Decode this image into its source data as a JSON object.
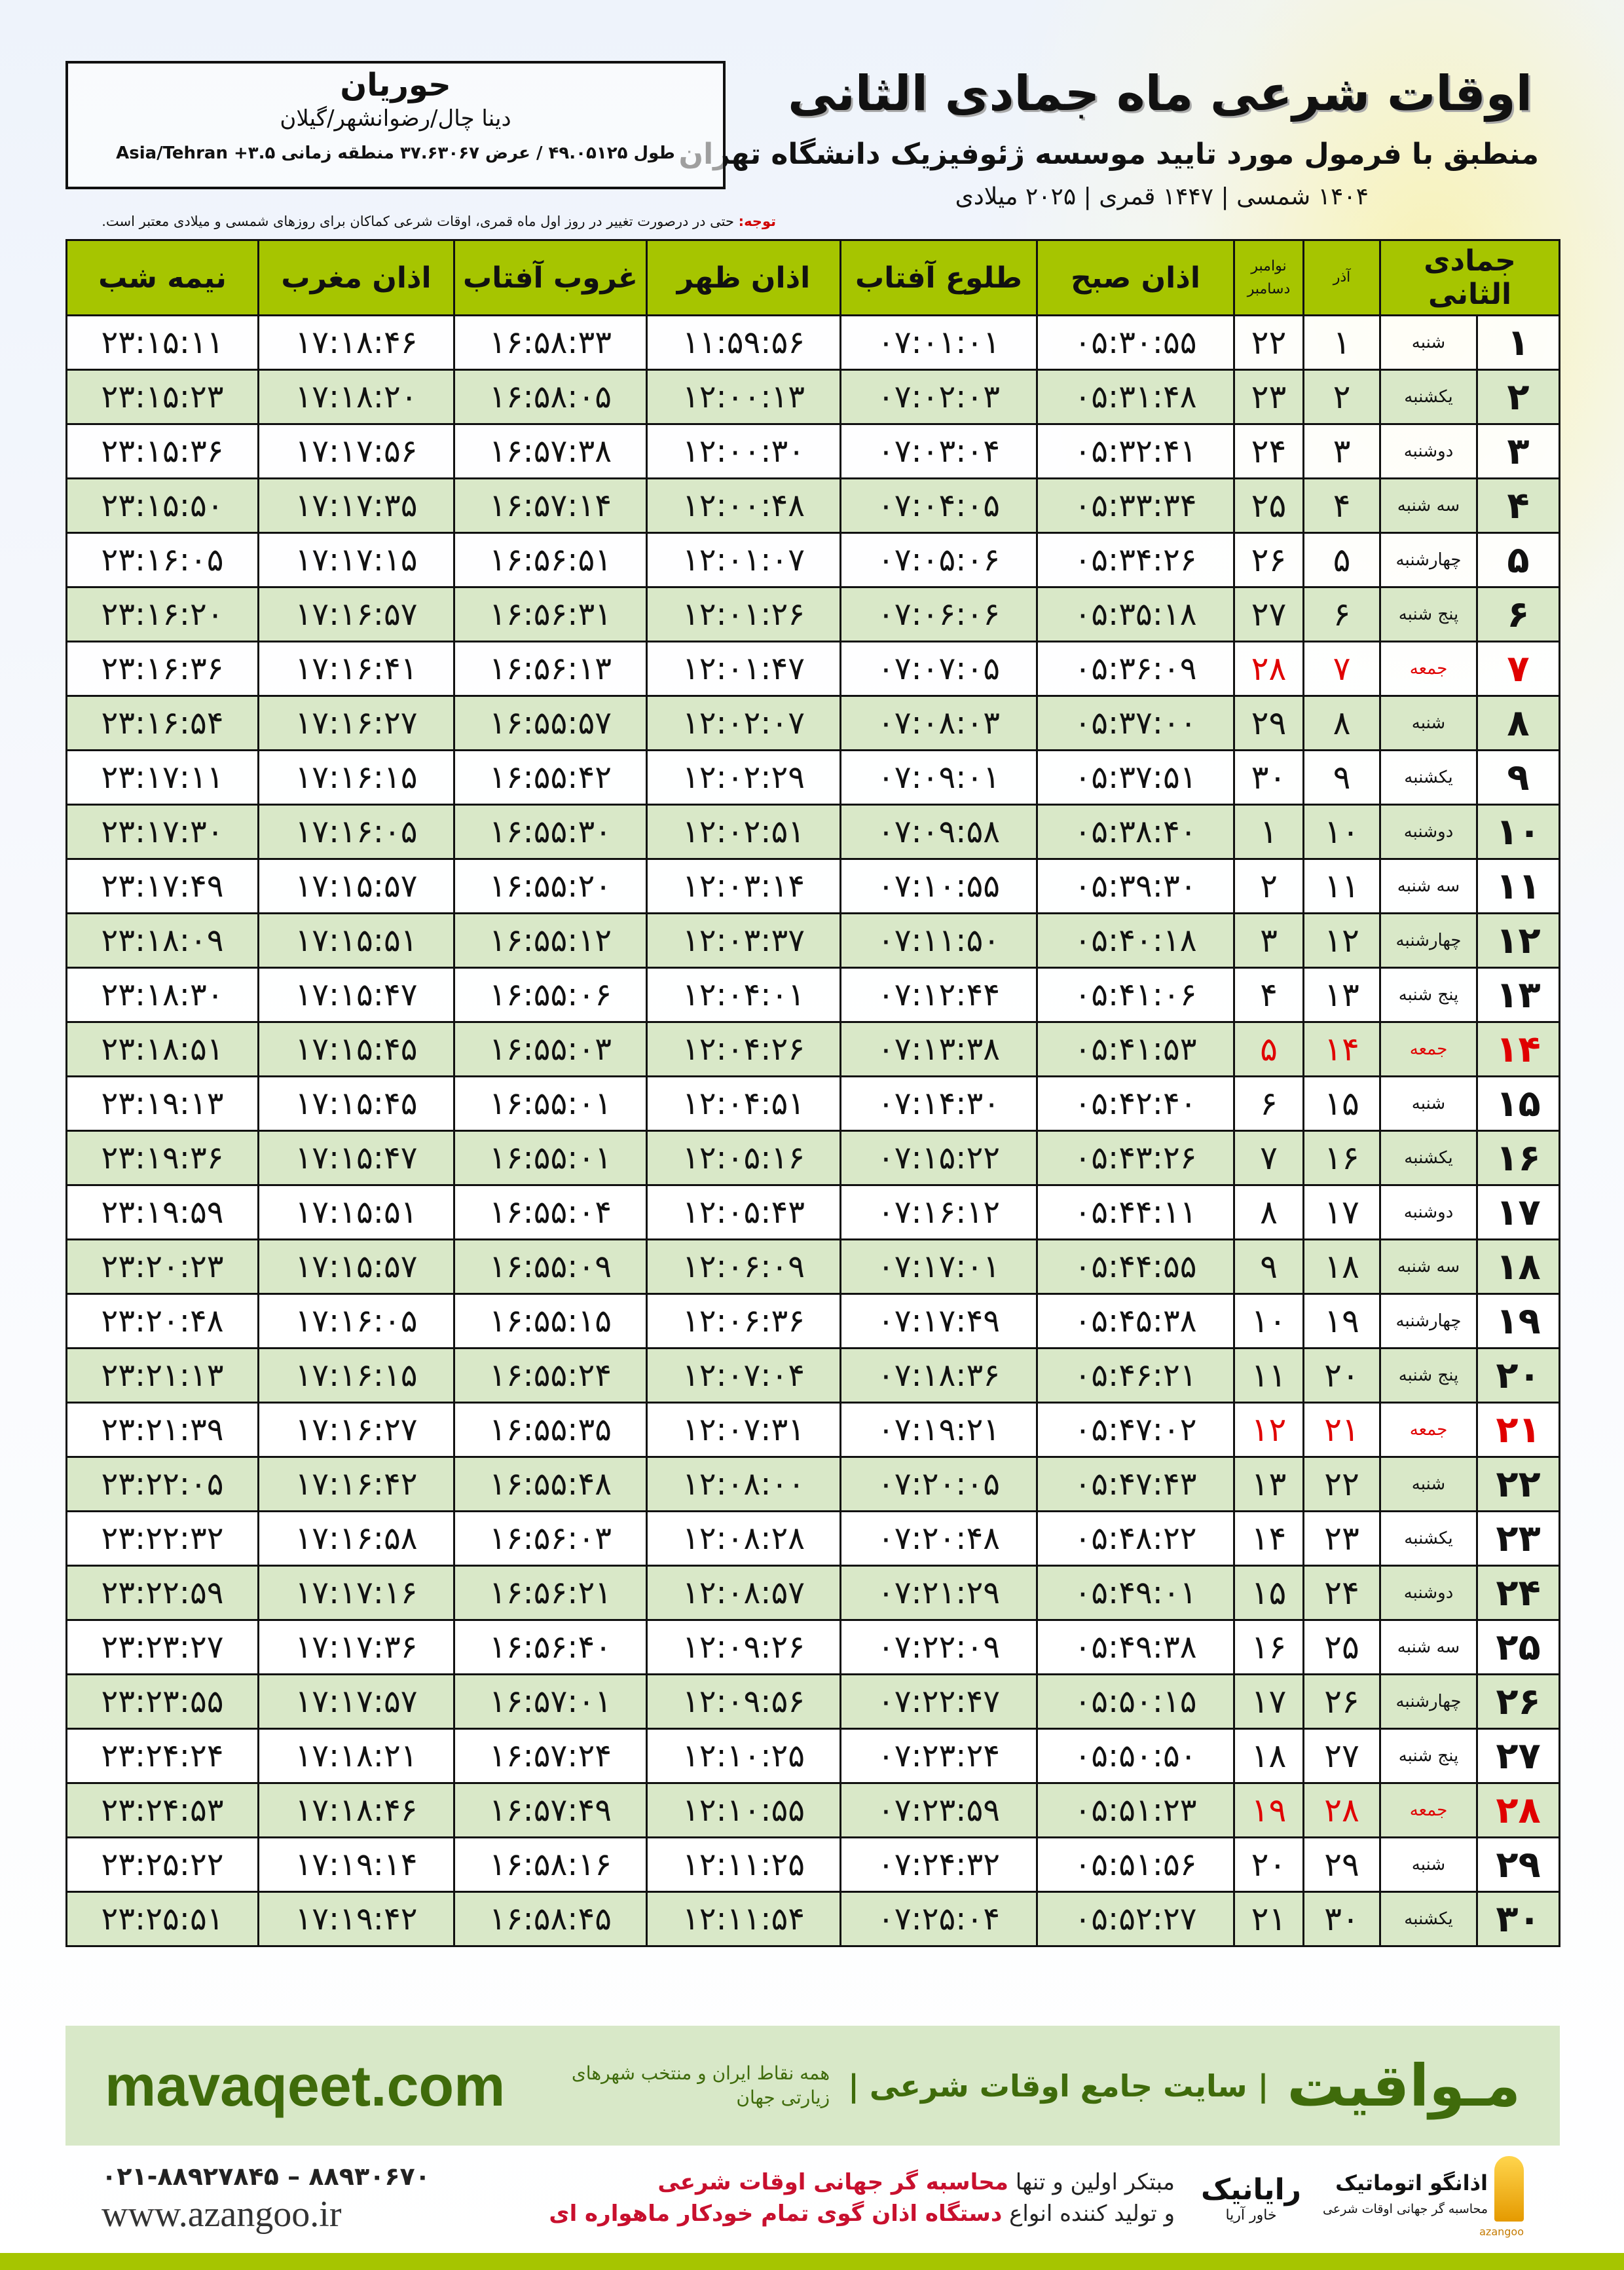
{
  "header": {
    "title": "اوقات شرعی ماه جمادی الثانی",
    "subtitle": "منطبق با فرمول مورد تایید موسسه ژئوفیزیک دانشگاه تهران",
    "dates": "۱۴۰۴ شمسی | ۱۴۴۷ قمری | ۲۰۲۵ میلادی"
  },
  "location": {
    "name": "حوریان",
    "region": "دینا چال/رضوانشهر/گیلان",
    "coords": "طول ۴۹.۰۵۱۲۵ / عرض ۳۷.۶۳۰۶۷ منطقه زمانی ۳.۵+ Asia/Tehran"
  },
  "note": {
    "label": "توجه:",
    "text": "حتی در درصورت تغییر در روز اول ماه قمری، اوقات شرعی کماکان برای روزهای شمسی و میلادی معتبر است."
  },
  "colors": {
    "header_bg": "#a6c500",
    "row_alt": "#d9e8c8",
    "holiday": "#e00000",
    "brand": "#3f6b0b"
  },
  "table": {
    "columns": [
      "جمادی الثانی",
      "",
      "آذر",
      "نوامبر / دسامبر",
      "اذان صبح",
      "طلوع آفتاب",
      "اذان ظهر",
      "غروب آفتاب",
      "اذان مغرب",
      "نیمه شب"
    ],
    "greg_top": "نوامبر",
    "greg_bottom": "دسامبر",
    "holiday_weekday": "جمعه",
    "rows": [
      [
        "۱",
        "شنبه",
        "۱",
        "۲۲",
        "۰۵:۳۰:۵۵",
        "۰۷:۰۱:۰۱",
        "۱۱:۵۹:۵۶",
        "۱۶:۵۸:۳۳",
        "۱۷:۱۸:۴۶",
        "۲۳:۱۵:۱۱"
      ],
      [
        "۲",
        "یکشنبه",
        "۲",
        "۲۳",
        "۰۵:۳۱:۴۸",
        "۰۷:۰۲:۰۳",
        "۱۲:۰۰:۱۳",
        "۱۶:۵۸:۰۵",
        "۱۷:۱۸:۲۰",
        "۲۳:۱۵:۲۳"
      ],
      [
        "۳",
        "دوشنبه",
        "۳",
        "۲۴",
        "۰۵:۳۲:۴۱",
        "۰۷:۰۳:۰۴",
        "۱۲:۰۰:۳۰",
        "۱۶:۵۷:۳۸",
        "۱۷:۱۷:۵۶",
        "۲۳:۱۵:۳۶"
      ],
      [
        "۴",
        "سه شنبه",
        "۴",
        "۲۵",
        "۰۵:۳۳:۳۴",
        "۰۷:۰۴:۰۵",
        "۱۲:۰۰:۴۸",
        "۱۶:۵۷:۱۴",
        "۱۷:۱۷:۳۵",
        "۲۳:۱۵:۵۰"
      ],
      [
        "۵",
        "چهارشنبه",
        "۵",
        "۲۶",
        "۰۵:۳۴:۲۶",
        "۰۷:۰۵:۰۶",
        "۱۲:۰۱:۰۷",
        "۱۶:۵۶:۵۱",
        "۱۷:۱۷:۱۵",
        "۲۳:۱۶:۰۵"
      ],
      [
        "۶",
        "پنج شنبه",
        "۶",
        "۲۷",
        "۰۵:۳۵:۱۸",
        "۰۷:۰۶:۰۶",
        "۱۲:۰۱:۲۶",
        "۱۶:۵۶:۳۱",
        "۱۷:۱۶:۵۷",
        "۲۳:۱۶:۲۰"
      ],
      [
        "۷",
        "جمعه",
        "۷",
        "۲۸",
        "۰۵:۳۶:۰۹",
        "۰۷:۰۷:۰۵",
        "۱۲:۰۱:۴۷",
        "۱۶:۵۶:۱۳",
        "۱۷:۱۶:۴۱",
        "۲۳:۱۶:۳۶"
      ],
      [
        "۸",
        "شنبه",
        "۸",
        "۲۹",
        "۰۵:۳۷:۰۰",
        "۰۷:۰۸:۰۳",
        "۱۲:۰۲:۰۷",
        "۱۶:۵۵:۵۷",
        "۱۷:۱۶:۲۷",
        "۲۳:۱۶:۵۴"
      ],
      [
        "۹",
        "یکشنبه",
        "۹",
        "۳۰",
        "۰۵:۳۷:۵۱",
        "۰۷:۰۹:۰۱",
        "۱۲:۰۲:۲۹",
        "۱۶:۵۵:۴۲",
        "۱۷:۱۶:۱۵",
        "۲۳:۱۷:۱۱"
      ],
      [
        "۱۰",
        "دوشنبه",
        "۱۰",
        "۱",
        "۰۵:۳۸:۴۰",
        "۰۷:۰۹:۵۸",
        "۱۲:۰۲:۵۱",
        "۱۶:۵۵:۳۰",
        "۱۷:۱۶:۰۵",
        "۲۳:۱۷:۳۰"
      ],
      [
        "۱۱",
        "سه شنبه",
        "۱۱",
        "۲",
        "۰۵:۳۹:۳۰",
        "۰۷:۱۰:۵۵",
        "۱۲:۰۳:۱۴",
        "۱۶:۵۵:۲۰",
        "۱۷:۱۵:۵۷",
        "۲۳:۱۷:۴۹"
      ],
      [
        "۱۲",
        "چهارشنبه",
        "۱۲",
        "۳",
        "۰۵:۴۰:۱۸",
        "۰۷:۱۱:۵۰",
        "۱۲:۰۳:۳۷",
        "۱۶:۵۵:۱۲",
        "۱۷:۱۵:۵۱",
        "۲۳:۱۸:۰۹"
      ],
      [
        "۱۳",
        "پنج شنبه",
        "۱۳",
        "۴",
        "۰۵:۴۱:۰۶",
        "۰۷:۱۲:۴۴",
        "۱۲:۰۴:۰۱",
        "۱۶:۵۵:۰۶",
        "۱۷:۱۵:۴۷",
        "۲۳:۱۸:۳۰"
      ],
      [
        "۱۴",
        "جمعه",
        "۱۴",
        "۵",
        "۰۵:۴۱:۵۳",
        "۰۷:۱۳:۳۸",
        "۱۲:۰۴:۲۶",
        "۱۶:۵۵:۰۳",
        "۱۷:۱۵:۴۵",
        "۲۳:۱۸:۵۱"
      ],
      [
        "۱۵",
        "شنبه",
        "۱۵",
        "۶",
        "۰۵:۴۲:۴۰",
        "۰۷:۱۴:۳۰",
        "۱۲:۰۴:۵۱",
        "۱۶:۵۵:۰۱",
        "۱۷:۱۵:۴۵",
        "۲۳:۱۹:۱۳"
      ],
      [
        "۱۶",
        "یکشنبه",
        "۱۶",
        "۷",
        "۰۵:۴۳:۲۶",
        "۰۷:۱۵:۲۲",
        "۱۲:۰۵:۱۶",
        "۱۶:۵۵:۰۱",
        "۱۷:۱۵:۴۷",
        "۲۳:۱۹:۳۶"
      ],
      [
        "۱۷",
        "دوشنبه",
        "۱۷",
        "۸",
        "۰۵:۴۴:۱۱",
        "۰۷:۱۶:۱۲",
        "۱۲:۰۵:۴۳",
        "۱۶:۵۵:۰۴",
        "۱۷:۱۵:۵۱",
        "۲۳:۱۹:۵۹"
      ],
      [
        "۱۸",
        "سه شنبه",
        "۱۸",
        "۹",
        "۰۵:۴۴:۵۵",
        "۰۷:۱۷:۰۱",
        "۱۲:۰۶:۰۹",
        "۱۶:۵۵:۰۹",
        "۱۷:۱۵:۵۷",
        "۲۳:۲۰:۲۳"
      ],
      [
        "۱۹",
        "چهارشنبه",
        "۱۹",
        "۱۰",
        "۰۵:۴۵:۳۸",
        "۰۷:۱۷:۴۹",
        "۱۲:۰۶:۳۶",
        "۱۶:۵۵:۱۵",
        "۱۷:۱۶:۰۵",
        "۲۳:۲۰:۴۸"
      ],
      [
        "۲۰",
        "پنج شنبه",
        "۲۰",
        "۱۱",
        "۰۵:۴۶:۲۱",
        "۰۷:۱۸:۳۶",
        "۱۲:۰۷:۰۴",
        "۱۶:۵۵:۲۴",
        "۱۷:۱۶:۱۵",
        "۲۳:۲۱:۱۳"
      ],
      [
        "۲۱",
        "جمعه",
        "۲۱",
        "۱۲",
        "۰۵:۴۷:۰۲",
        "۰۷:۱۹:۲۱",
        "۱۲:۰۷:۳۱",
        "۱۶:۵۵:۳۵",
        "۱۷:۱۶:۲۷",
        "۲۳:۲۱:۳۹"
      ],
      [
        "۲۲",
        "شنبه",
        "۲۲",
        "۱۳",
        "۰۵:۴۷:۴۳",
        "۰۷:۲۰:۰۵",
        "۱۲:۰۸:۰۰",
        "۱۶:۵۵:۴۸",
        "۱۷:۱۶:۴۲",
        "۲۳:۲۲:۰۵"
      ],
      [
        "۲۳",
        "یکشنبه",
        "۲۳",
        "۱۴",
        "۰۵:۴۸:۲۲",
        "۰۷:۲۰:۴۸",
        "۱۲:۰۸:۲۸",
        "۱۶:۵۶:۰۳",
        "۱۷:۱۶:۵۸",
        "۲۳:۲۲:۳۲"
      ],
      [
        "۲۴",
        "دوشنبه",
        "۲۴",
        "۱۵",
        "۰۵:۴۹:۰۱",
        "۰۷:۲۱:۲۹",
        "۱۲:۰۸:۵۷",
        "۱۶:۵۶:۲۱",
        "۱۷:۱۷:۱۶",
        "۲۳:۲۲:۵۹"
      ],
      [
        "۲۵",
        "سه شنبه",
        "۲۵",
        "۱۶",
        "۰۵:۴۹:۳۸",
        "۰۷:۲۲:۰۹",
        "۱۲:۰۹:۲۶",
        "۱۶:۵۶:۴۰",
        "۱۷:۱۷:۳۶",
        "۲۳:۲۳:۲۷"
      ],
      [
        "۲۶",
        "چهارشنبه",
        "۲۶",
        "۱۷",
        "۰۵:۵۰:۱۵",
        "۰۷:۲۲:۴۷",
        "۱۲:۰۹:۵۶",
        "۱۶:۵۷:۰۱",
        "۱۷:۱۷:۵۷",
        "۲۳:۲۳:۵۵"
      ],
      [
        "۲۷",
        "پنج شنبه",
        "۲۷",
        "۱۸",
        "۰۵:۵۰:۵۰",
        "۰۷:۲۳:۲۴",
        "۱۲:۱۰:۲۵",
        "۱۶:۵۷:۲۴",
        "۱۷:۱۸:۲۱",
        "۲۳:۲۴:۲۴"
      ],
      [
        "۲۸",
        "جمعه",
        "۲۸",
        "۱۹",
        "۰۵:۵۱:۲۳",
        "۰۷:۲۳:۵۹",
        "۱۲:۱۰:۵۵",
        "۱۶:۵۷:۴۹",
        "۱۷:۱۸:۴۶",
        "۲۳:۲۴:۵۳"
      ],
      [
        "۲۹",
        "شنبه",
        "۲۹",
        "۲۰",
        "۰۵:۵۱:۵۶",
        "۰۷:۲۴:۳۲",
        "۱۲:۱۱:۲۵",
        "۱۶:۵۸:۱۶",
        "۱۷:۱۹:۱۴",
        "۲۳:۲۵:۲۲"
      ],
      [
        "۳۰",
        "یکشنبه",
        "۳۰",
        "۲۱",
        "۰۵:۵۲:۲۷",
        "۰۷:۲۵:۰۴",
        "۱۲:۱۱:۵۴",
        "۱۶:۵۸:۴۵",
        "۱۷:۱۹:۴۲",
        "۲۳:۲۵:۵۱"
      ]
    ]
  },
  "footer": {
    "brand": "مـواقیت",
    "slogan": "| سایت جامع اوقات شرعی |",
    "slogan2": "همه نقاط ایران و منتخب شهرهای زیارتی جهان",
    "site": "mavaqeet.com",
    "phone": "۰۲۱-۸۸۹۲۷۸۴۵ – ۸۸۹۳۰۶۷۰",
    "web": "www.azangoo.ir",
    "promo1_a": "مبتکر اولین و تنها ",
    "promo1_b": "محاسبه گر جهانی اوقات شرعی",
    "promo2_a": "و تولید کننده انواع ",
    "promo2_b": "دستگاه اذان گوی تمام خودکار ماهواره ای",
    "logo_azangoo_name": "اذانگو اتوماتیک",
    "logo_azangoo_tagline": "محاسبه گر جهانی اوقات شرعی",
    "logo_azangoo_en": "azangoo",
    "logo_rayanik_name": "رایانیک",
    "logo_rayanik_sub": "خاور آریا"
  }
}
